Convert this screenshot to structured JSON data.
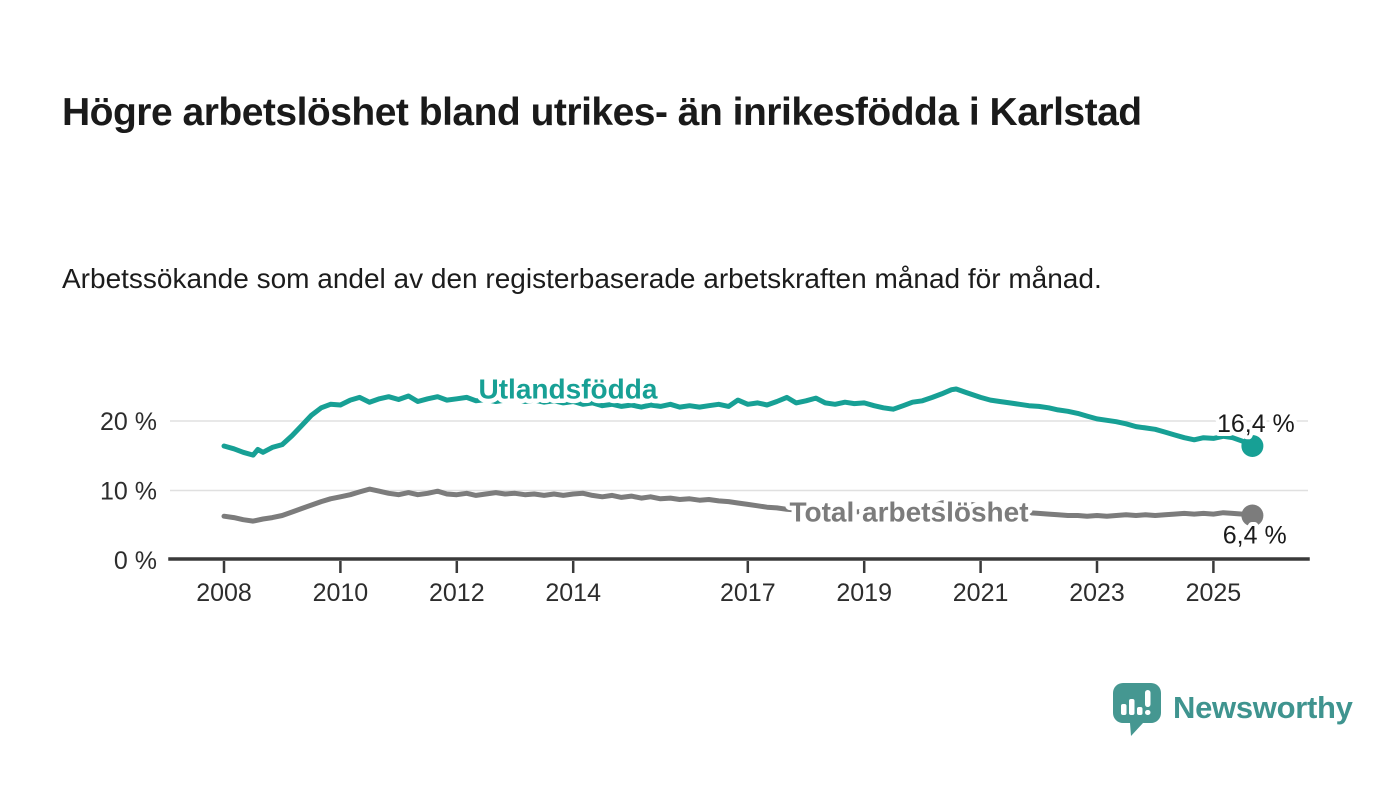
{
  "header": {
    "title": "Högre arbetslöshet bland utrikes- än inrikesfödda i Karlstad",
    "subtitle": "Arbetssökande som andel av den registerbaserade arbetskraften månad för månad."
  },
  "branding": {
    "name": "Newsworthy",
    "color": "#3f948f",
    "icon": "newsworthy-speech-bubble-barchart-icon",
    "icon_color": "#459791"
  },
  "chart_data": {
    "type": "line",
    "title": "Högre arbetslöshet bland utrikes- än inrikesfödda i Karlstad",
    "subtitle": "Arbetssökande som andel av den registerbaserade arbetskraften månad för månad.",
    "xlabel": "",
    "ylabel": "",
    "grid": true,
    "legend_position": "inline-labels",
    "x_axis": {
      "range": [
        2007.6,
        2026.4
      ],
      "ticks": [
        2008,
        2010,
        2012,
        2014,
        2017,
        2019,
        2021,
        2023,
        2025
      ]
    },
    "y_axis": {
      "range": [
        0,
        27
      ],
      "unit": "%",
      "ticks": [
        {
          "value": 0,
          "label": "0 %"
        },
        {
          "value": 10,
          "label": "10 %"
        },
        {
          "value": 20,
          "label": "20 %"
        }
      ]
    },
    "colors": {
      "grid": "#e0e0e0",
      "axis": "#3a3a3a",
      "tick_text": "#2d2d2d"
    },
    "series": [
      {
        "name": "Utlandsfödda",
        "color": "#17a095",
        "end_label": "16,4 %",
        "end_value": 16.4,
        "label_at": {
          "year": 2013.91,
          "value": 24.7
        },
        "end_label_at": {
          "year": 2025.73,
          "value": 19.7
        },
        "points": [
          [
            2008.0,
            16.4
          ],
          [
            2008.17,
            16.0
          ],
          [
            2008.33,
            15.5
          ],
          [
            2008.5,
            15.1
          ],
          [
            2008.58,
            15.9
          ],
          [
            2008.67,
            15.5
          ],
          [
            2008.83,
            16.2
          ],
          [
            2009.0,
            16.6
          ],
          [
            2009.17,
            17.9
          ],
          [
            2009.33,
            19.3
          ],
          [
            2009.5,
            20.8
          ],
          [
            2009.67,
            21.9
          ],
          [
            2009.83,
            22.4
          ],
          [
            2010.0,
            22.3
          ],
          [
            2010.17,
            23.0
          ],
          [
            2010.33,
            23.4
          ],
          [
            2010.5,
            22.7
          ],
          [
            2010.67,
            23.2
          ],
          [
            2010.83,
            23.5
          ],
          [
            2011.0,
            23.1
          ],
          [
            2011.17,
            23.6
          ],
          [
            2011.33,
            22.8
          ],
          [
            2011.5,
            23.2
          ],
          [
            2011.67,
            23.5
          ],
          [
            2011.83,
            23.0
          ],
          [
            2012.0,
            23.2
          ],
          [
            2012.17,
            23.4
          ],
          [
            2012.33,
            22.9
          ],
          [
            2012.5,
            23.1
          ],
          [
            2012.67,
            22.8
          ],
          [
            2012.83,
            23.0
          ],
          [
            2013.0,
            23.2
          ],
          [
            2013.17,
            22.8
          ],
          [
            2013.33,
            23.0
          ],
          [
            2013.5,
            22.7
          ],
          [
            2013.67,
            22.9
          ],
          [
            2013.83,
            22.6
          ],
          [
            2014.0,
            22.8
          ],
          [
            2014.17,
            22.4
          ],
          [
            2014.33,
            22.6
          ],
          [
            2014.5,
            22.2
          ],
          [
            2014.67,
            22.4
          ],
          [
            2014.83,
            22.1
          ],
          [
            2015.0,
            22.3
          ],
          [
            2015.17,
            22.0
          ],
          [
            2015.33,
            22.3
          ],
          [
            2015.5,
            22.1
          ],
          [
            2015.67,
            22.4
          ],
          [
            2015.83,
            22.0
          ],
          [
            2016.0,
            22.2
          ],
          [
            2016.17,
            22.0
          ],
          [
            2016.33,
            22.2
          ],
          [
            2016.5,
            22.4
          ],
          [
            2016.67,
            22.1
          ],
          [
            2016.83,
            23.0
          ],
          [
            2017.0,
            22.4
          ],
          [
            2017.17,
            22.6
          ],
          [
            2017.33,
            22.3
          ],
          [
            2017.5,
            22.8
          ],
          [
            2017.67,
            23.4
          ],
          [
            2017.83,
            22.6
          ],
          [
            2018.0,
            22.9
          ],
          [
            2018.17,
            23.3
          ],
          [
            2018.33,
            22.6
          ],
          [
            2018.5,
            22.4
          ],
          [
            2018.67,
            22.7
          ],
          [
            2018.83,
            22.5
          ],
          [
            2019.0,
            22.6
          ],
          [
            2019.17,
            22.2
          ],
          [
            2019.33,
            21.9
          ],
          [
            2019.5,
            21.7
          ],
          [
            2019.67,
            22.2
          ],
          [
            2019.83,
            22.7
          ],
          [
            2020.0,
            22.9
          ],
          [
            2020.17,
            23.4
          ],
          [
            2020.33,
            23.9
          ],
          [
            2020.5,
            24.5
          ],
          [
            2020.58,
            24.6
          ],
          [
            2020.75,
            24.1
          ],
          [
            2021.0,
            23.4
          ],
          [
            2021.17,
            23.0
          ],
          [
            2021.33,
            22.8
          ],
          [
            2021.5,
            22.6
          ],
          [
            2021.67,
            22.4
          ],
          [
            2021.83,
            22.2
          ],
          [
            2022.0,
            22.1
          ],
          [
            2022.17,
            21.9
          ],
          [
            2022.33,
            21.6
          ],
          [
            2022.5,
            21.4
          ],
          [
            2022.67,
            21.1
          ],
          [
            2022.83,
            20.7
          ],
          [
            2023.0,
            20.3
          ],
          [
            2023.17,
            20.1
          ],
          [
            2023.33,
            19.9
          ],
          [
            2023.5,
            19.6
          ],
          [
            2023.67,
            19.2
          ],
          [
            2023.83,
            19.0
          ],
          [
            2024.0,
            18.8
          ],
          [
            2024.17,
            18.4
          ],
          [
            2024.33,
            18.0
          ],
          [
            2024.5,
            17.6
          ],
          [
            2024.67,
            17.3
          ],
          [
            2024.83,
            17.6
          ],
          [
            2025.0,
            17.5
          ],
          [
            2025.17,
            17.8
          ],
          [
            2025.33,
            17.6
          ],
          [
            2025.5,
            17.1
          ],
          [
            2025.67,
            16.4
          ]
        ]
      },
      {
        "name": "Total arbetslöshet",
        "color": "#7c7c7c",
        "end_label": "6,4 %",
        "end_value": 6.4,
        "label_at": {
          "year": 2019.77,
          "value": 7.0
        },
        "end_label_at": {
          "year": 2025.71,
          "value": 3.7
        },
        "points": [
          [
            2008.0,
            6.3
          ],
          [
            2008.17,
            6.1
          ],
          [
            2008.33,
            5.8
          ],
          [
            2008.5,
            5.6
          ],
          [
            2008.67,
            5.9
          ],
          [
            2008.83,
            6.1
          ],
          [
            2009.0,
            6.4
          ],
          [
            2009.17,
            6.9
          ],
          [
            2009.33,
            7.4
          ],
          [
            2009.5,
            7.9
          ],
          [
            2009.67,
            8.4
          ],
          [
            2009.83,
            8.8
          ],
          [
            2010.0,
            9.1
          ],
          [
            2010.17,
            9.4
          ],
          [
            2010.33,
            9.8
          ],
          [
            2010.5,
            10.2
          ],
          [
            2010.67,
            9.9
          ],
          [
            2010.83,
            9.6
          ],
          [
            2011.0,
            9.4
          ],
          [
            2011.17,
            9.7
          ],
          [
            2011.33,
            9.4
          ],
          [
            2011.5,
            9.6
          ],
          [
            2011.67,
            9.9
          ],
          [
            2011.83,
            9.5
          ],
          [
            2012.0,
            9.4
          ],
          [
            2012.17,
            9.6
          ],
          [
            2012.33,
            9.3
          ],
          [
            2012.5,
            9.5
          ],
          [
            2012.67,
            9.7
          ],
          [
            2012.83,
            9.5
          ],
          [
            2013.0,
            9.6
          ],
          [
            2013.17,
            9.4
          ],
          [
            2013.33,
            9.5
          ],
          [
            2013.5,
            9.3
          ],
          [
            2013.67,
            9.5
          ],
          [
            2013.83,
            9.3
          ],
          [
            2014.0,
            9.5
          ],
          [
            2014.17,
            9.6
          ],
          [
            2014.33,
            9.3
          ],
          [
            2014.5,
            9.1
          ],
          [
            2014.67,
            9.3
          ],
          [
            2014.83,
            9.0
          ],
          [
            2015.0,
            9.2
          ],
          [
            2015.17,
            8.9
          ],
          [
            2015.33,
            9.1
          ],
          [
            2015.5,
            8.8
          ],
          [
            2015.67,
            8.9
          ],
          [
            2015.83,
            8.7
          ],
          [
            2016.0,
            8.8
          ],
          [
            2016.17,
            8.6
          ],
          [
            2016.33,
            8.7
          ],
          [
            2016.5,
            8.5
          ],
          [
            2016.67,
            8.4
          ],
          [
            2016.83,
            8.2
          ],
          [
            2017.0,
            8.0
          ],
          [
            2017.17,
            7.8
          ],
          [
            2017.33,
            7.6
          ],
          [
            2017.5,
            7.5
          ],
          [
            2017.67,
            7.3
          ],
          [
            2017.83,
            7.2
          ],
          [
            2018.0,
            7.3
          ],
          [
            2018.17,
            7.1
          ],
          [
            2018.33,
            7.2
          ],
          [
            2018.5,
            7.0
          ],
          [
            2018.67,
            7.1
          ],
          [
            2018.83,
            6.9
          ],
          [
            2019.0,
            7.0
          ],
          [
            2019.17,
            6.9
          ],
          [
            2019.33,
            7.0
          ],
          [
            2019.5,
            6.9
          ],
          [
            2019.67,
            7.0
          ],
          [
            2019.83,
            7.1
          ],
          [
            2020.0,
            7.2
          ],
          [
            2020.17,
            7.7
          ],
          [
            2020.33,
            8.2
          ],
          [
            2020.5,
            8.4
          ],
          [
            2020.67,
            8.2
          ],
          [
            2020.83,
            8.0
          ],
          [
            2021.0,
            7.8
          ],
          [
            2021.17,
            7.5
          ],
          [
            2021.33,
            7.3
          ],
          [
            2021.5,
            7.1
          ],
          [
            2021.67,
            6.9
          ],
          [
            2021.83,
            6.8
          ],
          [
            2022.0,
            6.7
          ],
          [
            2022.17,
            6.6
          ],
          [
            2022.33,
            6.5
          ],
          [
            2022.5,
            6.4
          ],
          [
            2022.67,
            6.4
          ],
          [
            2022.83,
            6.3
          ],
          [
            2023.0,
            6.4
          ],
          [
            2023.17,
            6.3
          ],
          [
            2023.33,
            6.4
          ],
          [
            2023.5,
            6.5
          ],
          [
            2023.67,
            6.4
          ],
          [
            2023.83,
            6.5
          ],
          [
            2024.0,
            6.4
          ],
          [
            2024.17,
            6.5
          ],
          [
            2024.33,
            6.6
          ],
          [
            2024.5,
            6.7
          ],
          [
            2024.67,
            6.6
          ],
          [
            2024.83,
            6.7
          ],
          [
            2025.0,
            6.6
          ],
          [
            2025.17,
            6.8
          ],
          [
            2025.33,
            6.7
          ],
          [
            2025.5,
            6.6
          ],
          [
            2025.67,
            6.4
          ]
        ]
      }
    ]
  }
}
